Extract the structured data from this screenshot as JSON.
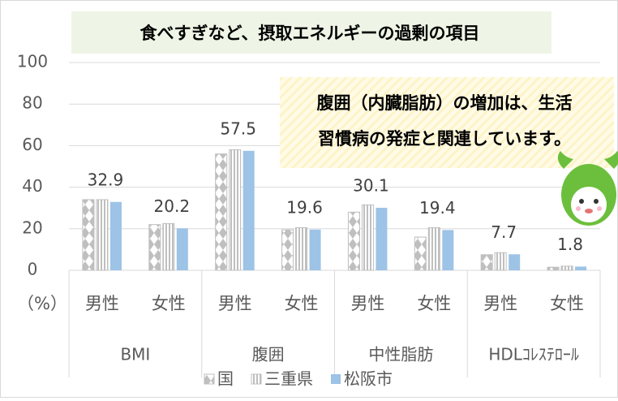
{
  "chart_data": {
    "type": "bar",
    "title": "食べすぎなど、摂取エネルギーの過剰の項目",
    "annotation": [
      "腹囲（内臓脂肪）の増加は、生活",
      "習慣病の発症と関連しています。"
    ],
    "y_unit": "（%）",
    "categories": [
      "男性",
      "女性",
      "男性",
      "女性",
      "男性",
      "女性",
      "男性",
      "女性"
    ],
    "groups": [
      "BMI",
      "腹囲",
      "中性脂肪",
      "HDLｺﾚｽﾃﾛｰﾙ"
    ],
    "series": [
      {
        "name": "国",
        "color": "#bfbfbf",
        "pattern": "diamond",
        "values": [
          34,
          22,
          56,
          19.5,
          28,
          16,
          7.5,
          1.5
        ]
      },
      {
        "name": "三重県",
        "color": "#bfbfbf",
        "pattern": "stripes",
        "values": [
          34,
          22.5,
          58,
          20.5,
          31.5,
          20.5,
          8.5,
          2
        ]
      },
      {
        "name": "松阪市",
        "color": "#9dc3e6",
        "data_labels": true,
        "values": [
          32.9,
          20.2,
          57.5,
          19.6,
          30.1,
          19.4,
          7.7,
          1.8
        ]
      }
    ],
    "ylim": [
      0,
      100
    ],
    "yticks": [
      0,
      20,
      40,
      60,
      80,
      100
    ],
    "grid": true
  }
}
